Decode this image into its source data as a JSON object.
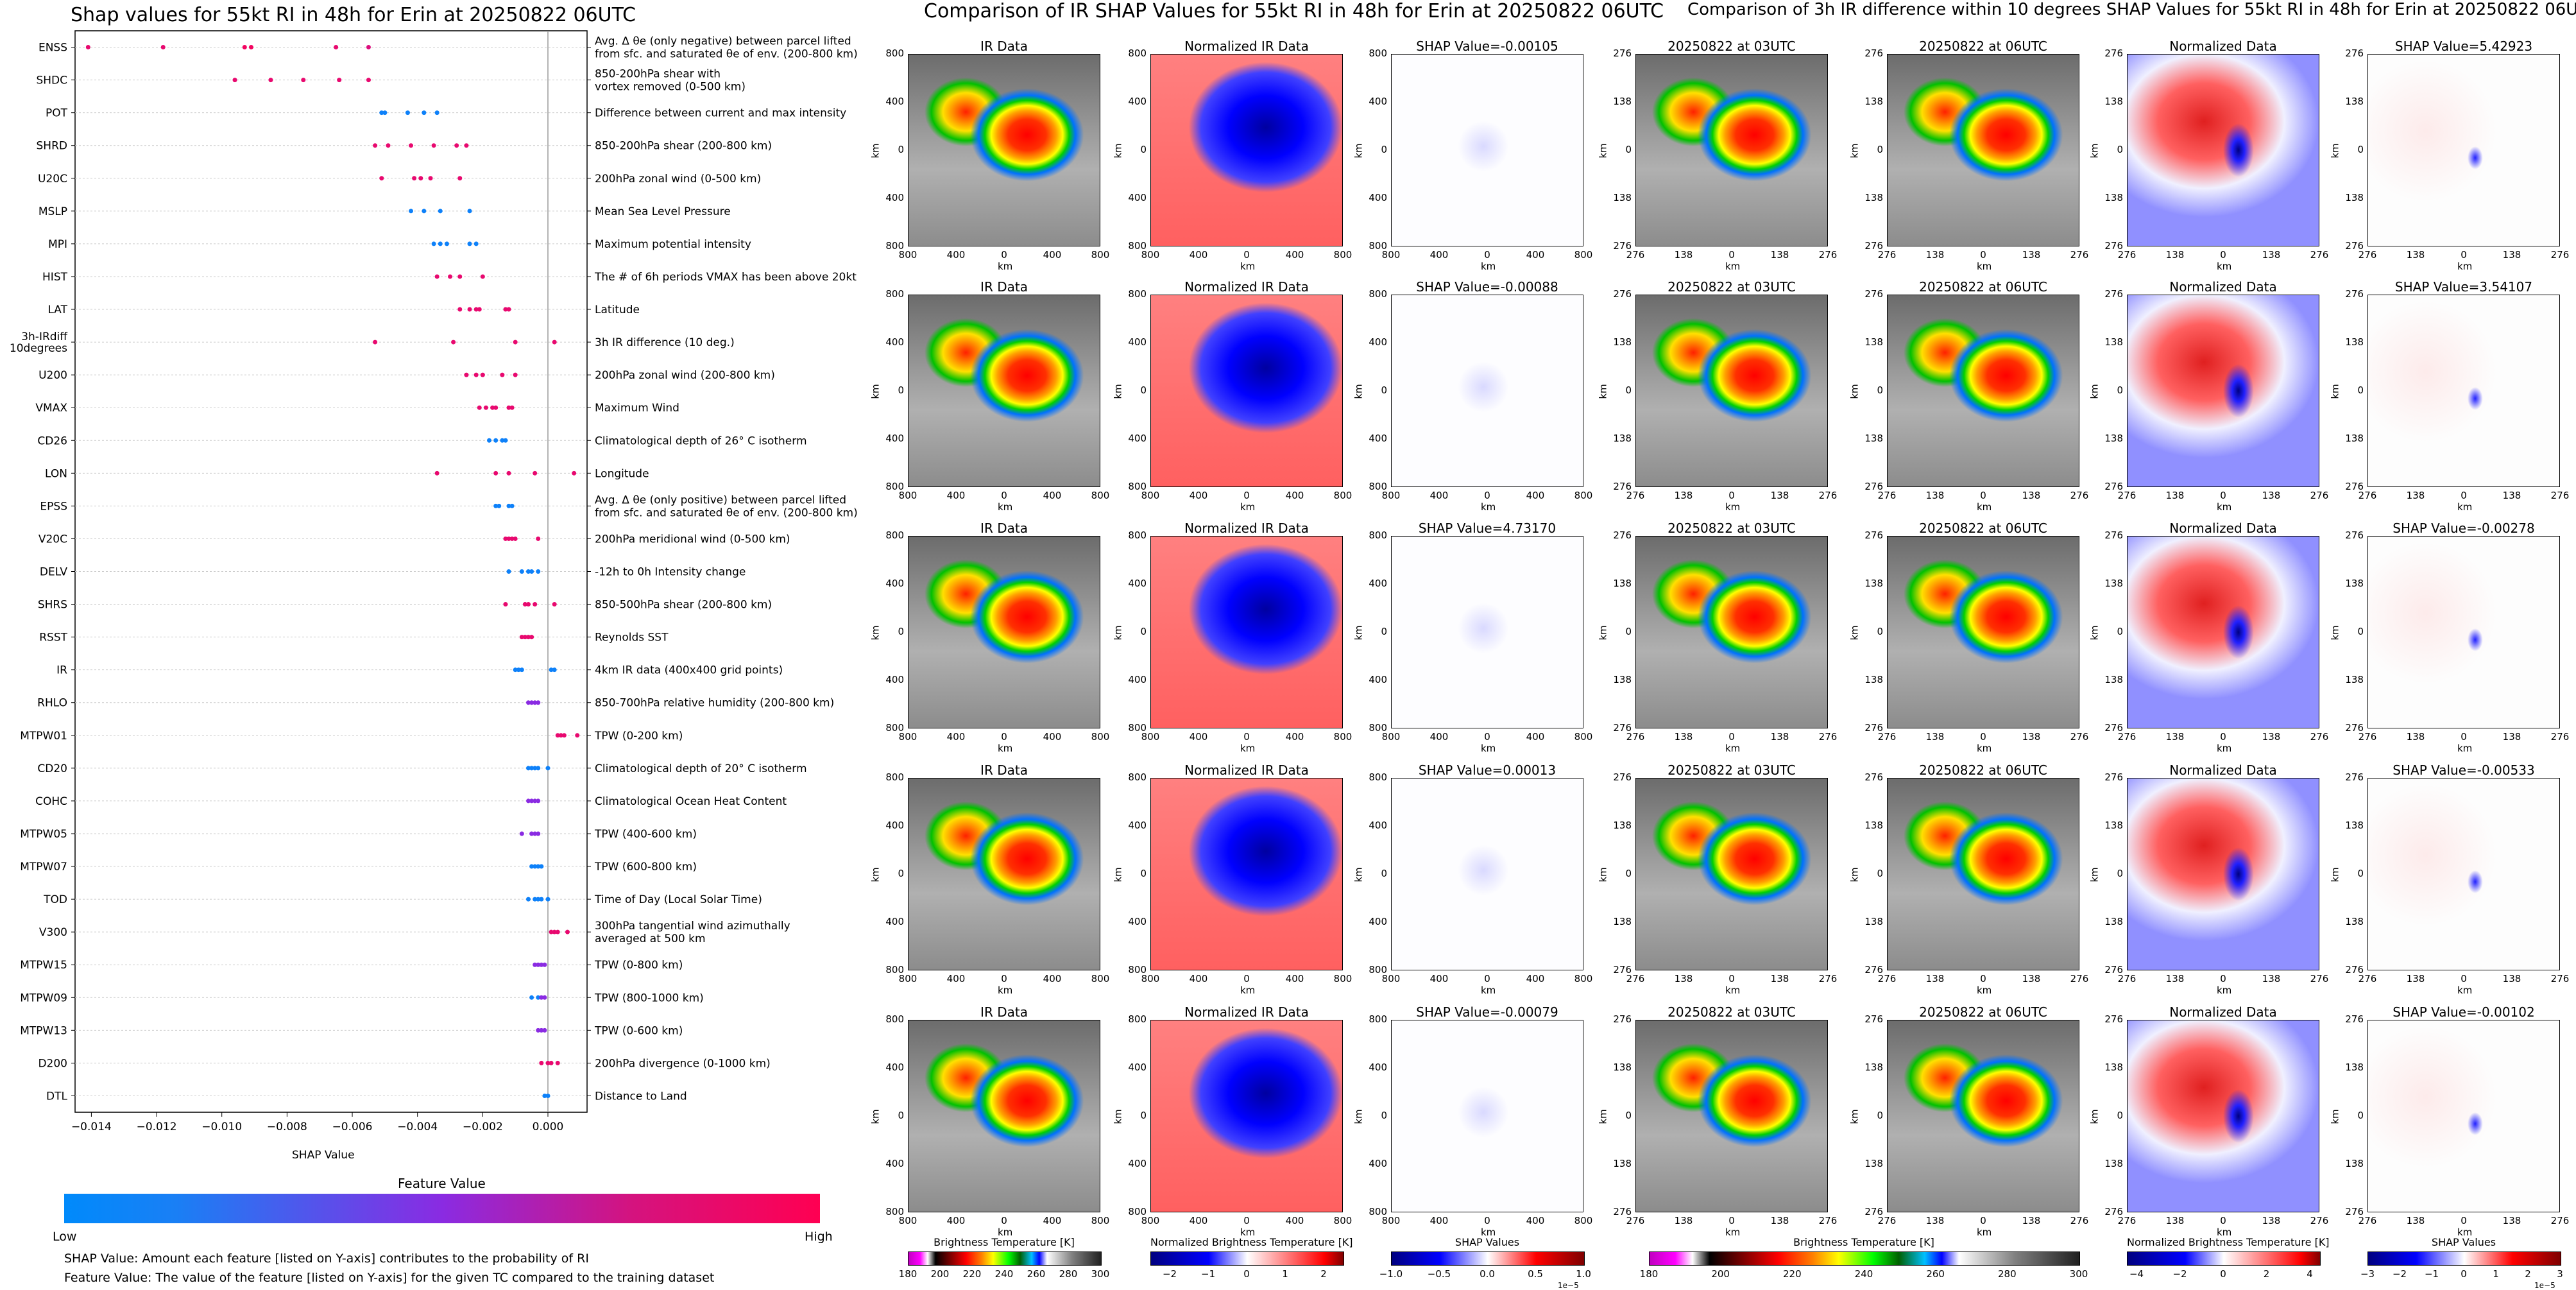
{
  "titles": {
    "left": "Shap values for 55kt RI in 48h for Erin at 20250822 06UTC",
    "middle": "Comparison of IR SHAP Values for 55kt RI in 48h for Erin at 20250822 06UTC",
    "right": "Comparison of 3h IR difference within 10 degrees SHAP Values for 55kt RI in 48h for Erin at 20250822 06UTC"
  },
  "summary": {
    "xlabel": "SHAP Value",
    "colorbar_title": "Feature Value",
    "colorbar_low": "Low",
    "colorbar_high": "High",
    "note1": "SHAP Value: Amount each feature [listed on Y-axis] contributes to the probability of RI",
    "note2": "Feature Value: The value of the feature [listed on Y-axis] for the given TC compared to the training dataset"
  },
  "ir_titles": [
    "IR Data",
    "Normalized IR Data",
    "SHAP Value=-0.00105",
    "SHAP Value=-0.00088",
    "SHAP Value=4.73170",
    "SHAP Value=0.00013",
    "SHAP Value=-0.00079"
  ],
  "diff_titles": [
    "20250822 at 03UTC",
    "20250822 at 06UTC",
    "Normalized Data",
    "SHAP Value=5.42923",
    "SHAP Value=3.54107",
    "SHAP Value=-0.00278",
    "SHAP Value=-0.00533",
    "SHAP Value=-0.00102"
  ],
  "km_label": "km",
  "colorbars": {
    "bt": {
      "label": "Brightness Temperature [K]",
      "ticks": [
        "180",
        "200",
        "220",
        "240",
        "260",
        "280",
        "300"
      ]
    },
    "nbt": {
      "label": "Normalized Brightness Temperature [K]",
      "ticks": [
        "−2",
        "−1",
        "0",
        "1",
        "2"
      ],
      "ticks_right": [
        "−4",
        "−2",
        "0",
        "2",
        "4"
      ]
    },
    "shap": {
      "label": "SHAP Values",
      "ticks": [
        "−1.0",
        "−0.5",
        "0.0",
        "0.5",
        "1.0"
      ],
      "offset": "1e−5",
      "ticks_right": [
        "−3",
        "−2",
        "−1",
        "0",
        "1",
        "2",
        "3"
      ],
      "offset_right": "1e−5"
    }
  },
  "colors": {
    "low": "#008afb",
    "high": "#ff0052",
    "mid": "#8a2be2"
  },
  "chart_data": {
    "type": "scatter",
    "title": "Shap values for 55kt RI in 48h for Erin at 20250822 06UTC",
    "xlabel": "SHAP Value",
    "xlim": [
      -0.0145,
      0.0012
    ],
    "xticks": [
      "−0.014",
      "−0.012",
      "−0.010",
      "−0.008",
      "−0.006",
      "−0.004",
      "−0.002",
      "0.000"
    ],
    "xtick_values": [
      -0.014,
      -0.012,
      -0.01,
      -0.008,
      -0.006,
      -0.004,
      -0.002,
      0.0
    ],
    "features": [
      {
        "name": "ENSS",
        "desc": "Avg. Δ θe (only negative) between parcel lifted|from sfc. and saturated θe of env. (200-800 km)",
        "points": [
          [
            -0.0141,
            0.9
          ],
          [
            -0.0118,
            0.9
          ],
          [
            -0.0093,
            0.95
          ],
          [
            -0.0091,
            0.95
          ],
          [
            -0.0065,
            0.9
          ],
          [
            -0.0055,
            0.85
          ]
        ]
      },
      {
        "name": "SHDC",
        "desc": "850-200hPa shear with|vortex removed (0-500 km)",
        "points": [
          [
            -0.0096,
            0.9
          ],
          [
            -0.0085,
            0.9
          ],
          [
            -0.0075,
            0.9
          ],
          [
            -0.0064,
            0.9
          ],
          [
            -0.0055,
            0.9
          ]
        ]
      },
      {
        "name": "POT",
        "desc": "Difference between current and max intensity",
        "points": [
          [
            -0.0051,
            0.05
          ],
          [
            -0.005,
            0.05
          ],
          [
            -0.0043,
            0.05
          ],
          [
            -0.0038,
            0.05
          ],
          [
            -0.0034,
            0.05
          ]
        ]
      },
      {
        "name": "SHRD",
        "desc": "850-200hPa shear (200-800 km)",
        "points": [
          [
            -0.0053,
            0.9
          ],
          [
            -0.0049,
            0.9
          ],
          [
            -0.0042,
            0.9
          ],
          [
            -0.0035,
            0.9
          ],
          [
            -0.0028,
            0.9
          ],
          [
            -0.0025,
            0.9
          ]
        ]
      },
      {
        "name": "U20C",
        "desc": "200hPa zonal wind (0-500 km)",
        "points": [
          [
            -0.0051,
            0.9
          ],
          [
            -0.0041,
            0.9
          ],
          [
            -0.0039,
            0.9
          ],
          [
            -0.0036,
            0.9
          ],
          [
            -0.0027,
            0.9
          ]
        ]
      },
      {
        "name": "MSLP",
        "desc": "Mean Sea Level Pressure",
        "points": [
          [
            -0.0042,
            0.05
          ],
          [
            -0.0038,
            0.05
          ],
          [
            -0.0033,
            0.05
          ],
          [
            -0.0024,
            0.05
          ]
        ]
      },
      {
        "name": "MPI",
        "desc": "Maximum potential intensity",
        "points": [
          [
            -0.0035,
            0.05
          ],
          [
            -0.0033,
            0.05
          ],
          [
            -0.0031,
            0.05
          ],
          [
            -0.0024,
            0.05
          ],
          [
            -0.0022,
            0.05
          ]
        ]
      },
      {
        "name": "HIST",
        "desc": "The # of 6h periods VMAX has been above 20kt",
        "points": [
          [
            -0.0034,
            0.9
          ],
          [
            -0.003,
            0.9
          ],
          [
            -0.0027,
            0.9
          ],
          [
            -0.002,
            0.9
          ]
        ]
      },
      {
        "name": "LAT",
        "desc": "Latitude",
        "points": [
          [
            -0.0027,
            0.9
          ],
          [
            -0.0024,
            0.9
          ],
          [
            -0.0022,
            0.9
          ],
          [
            -0.0021,
            0.9
          ],
          [
            -0.0013,
            0.9
          ],
          [
            -0.0012,
            0.9
          ]
        ]
      },
      {
        "name": "3h-IRdiff|10degrees",
        "desc": "3h IR difference (10 deg.)",
        "points": [
          [
            -0.0053,
            0.9
          ],
          [
            -0.0029,
            0.9
          ],
          [
            -0.001,
            0.9
          ],
          [
            0.0002,
            0.9
          ]
        ]
      },
      {
        "name": "U200",
        "desc": "200hPa zonal wind (200-800 km)",
        "points": [
          [
            -0.0025,
            0.9
          ],
          [
            -0.0022,
            0.9
          ],
          [
            -0.002,
            0.9
          ],
          [
            -0.0014,
            0.9
          ],
          [
            -0.001,
            0.9
          ]
        ]
      },
      {
        "name": "VMAX",
        "desc": "Maximum Wind",
        "points": [
          [
            -0.0021,
            0.9
          ],
          [
            -0.0019,
            0.9
          ],
          [
            -0.0017,
            0.9
          ],
          [
            -0.0016,
            0.9
          ],
          [
            -0.0012,
            0.9
          ],
          [
            -0.0011,
            0.9
          ]
        ]
      },
      {
        "name": "CD26",
        "desc": "Climatological depth of 26° C isotherm",
        "points": [
          [
            -0.0018,
            0.05
          ],
          [
            -0.0016,
            0.05
          ],
          [
            -0.0014,
            0.05
          ],
          [
            -0.0013,
            0.05
          ]
        ]
      },
      {
        "name": "LON",
        "desc": "Longitude",
        "points": [
          [
            -0.0034,
            0.9
          ],
          [
            -0.0016,
            0.9
          ],
          [
            -0.0012,
            0.9
          ],
          [
            -0.0004,
            0.9
          ],
          [
            0.0008,
            0.9
          ]
        ]
      },
      {
        "name": "EPSS",
        "desc": "Avg. Δ θe (only positive) between parcel lifted|from sfc. and saturated θe of env. (200-800 km)",
        "points": [
          [
            -0.0016,
            0.05
          ],
          [
            -0.0015,
            0.05
          ],
          [
            -0.0012,
            0.05
          ],
          [
            -0.0011,
            0.05
          ]
        ]
      },
      {
        "name": "V20C",
        "desc": "200hPa meridional wind (0-500 km)",
        "points": [
          [
            -0.0013,
            0.9
          ],
          [
            -0.0012,
            0.9
          ],
          [
            -0.0011,
            0.9
          ],
          [
            -0.001,
            0.9
          ],
          [
            -0.0003,
            0.9
          ]
        ]
      },
      {
        "name": "DELV",
        "desc": "-12h to 0h Intensity change",
        "points": [
          [
            -0.0012,
            0.05
          ],
          [
            -0.0008,
            0.05
          ],
          [
            -0.0006,
            0.05
          ],
          [
            -0.0005,
            0.05
          ],
          [
            -0.0003,
            0.05
          ]
        ]
      },
      {
        "name": "SHRS",
        "desc": "850-500hPa shear (200-800 km)",
        "points": [
          [
            -0.0013,
            0.9
          ],
          [
            -0.0007,
            0.9
          ],
          [
            -0.0006,
            0.9
          ],
          [
            -0.0004,
            0.9
          ],
          [
            0.0002,
            0.9
          ]
        ]
      },
      {
        "name": "RSST",
        "desc": "Reynolds SST",
        "points": [
          [
            -0.0008,
            0.9
          ],
          [
            -0.0007,
            0.9
          ],
          [
            -0.0006,
            0.9
          ],
          [
            -0.0005,
            0.9
          ]
        ]
      },
      {
        "name": "IR",
        "desc": "4km IR data (400x400 grid points)",
        "points": [
          [
            -0.001,
            0.05
          ],
          [
            -0.0009,
            0.05
          ],
          [
            -0.0008,
            0.05
          ],
          [
            0.0001,
            0.05
          ],
          [
            0.0002,
            0.05
          ]
        ]
      },
      {
        "name": "RHLO",
        "desc": "850-700hPa relative humidity (200-800 km)",
        "points": [
          [
            -0.0006,
            0.5
          ],
          [
            -0.0005,
            0.5
          ],
          [
            -0.0004,
            0.5
          ],
          [
            -0.0003,
            0.5
          ]
        ]
      },
      {
        "name": "MTPW01",
        "desc": "TPW (0-200 km)",
        "points": [
          [
            0.0003,
            0.9
          ],
          [
            0.0004,
            0.9
          ],
          [
            0.0005,
            0.9
          ],
          [
            0.0009,
            0.9
          ]
        ]
      },
      {
        "name": "CD20",
        "desc": "Climatological depth of 20° C isotherm",
        "points": [
          [
            -0.0006,
            0.05
          ],
          [
            -0.0005,
            0.05
          ],
          [
            -0.0004,
            0.05
          ],
          [
            -0.0003,
            0.05
          ],
          [
            0.0,
            0.05
          ]
        ]
      },
      {
        "name": "COHC",
        "desc": "Climatological Ocean Heat Content",
        "points": [
          [
            -0.0006,
            0.5
          ],
          [
            -0.0005,
            0.5
          ],
          [
            -0.0004,
            0.5
          ],
          [
            -0.0003,
            0.5
          ]
        ]
      },
      {
        "name": "MTPW05",
        "desc": "TPW (400-600 km)",
        "points": [
          [
            -0.0008,
            0.5
          ],
          [
            -0.0005,
            0.5
          ],
          [
            -0.0004,
            0.5
          ],
          [
            -0.0003,
            0.5
          ]
        ]
      },
      {
        "name": "MTPW07",
        "desc": "TPW (600-800 km)",
        "points": [
          [
            -0.0005,
            0.05
          ],
          [
            -0.0004,
            0.05
          ],
          [
            -0.0003,
            0.05
          ],
          [
            -0.0002,
            0.05
          ]
        ]
      },
      {
        "name": "TOD",
        "desc": "Time of Day (Local Solar Time)",
        "points": [
          [
            -0.0006,
            0.05
          ],
          [
            -0.0004,
            0.05
          ],
          [
            -0.0003,
            0.05
          ],
          [
            -0.0002,
            0.05
          ],
          [
            0.0,
            0.05
          ]
        ]
      },
      {
        "name": "V300",
        "desc": "300hPa tangential wind azimuthally|averaged at 500 km",
        "points": [
          [
            0.0001,
            0.9
          ],
          [
            0.0002,
            0.9
          ],
          [
            0.0003,
            0.9
          ],
          [
            0.0006,
            0.9
          ]
        ]
      },
      {
        "name": "MTPW15",
        "desc": "TPW (0-800 km)",
        "points": [
          [
            -0.0004,
            0.5
          ],
          [
            -0.0003,
            0.5
          ],
          [
            -0.0002,
            0.5
          ],
          [
            -0.0001,
            0.5
          ]
        ]
      },
      {
        "name": "MTPW09",
        "desc": "TPW (800-1000 km)",
        "points": [
          [
            -0.0005,
            0.05
          ],
          [
            -0.0003,
            0.05
          ],
          [
            -0.0002,
            0.5
          ],
          [
            -0.0001,
            0.5
          ]
        ]
      },
      {
        "name": "MTPW13",
        "desc": "TPW (0-600 km)",
        "points": [
          [
            -0.0003,
            0.5
          ],
          [
            -0.0002,
            0.5
          ],
          [
            -0.0001,
            0.5
          ]
        ]
      },
      {
        "name": "D200",
        "desc": "200hPa divergence (0-1000 km)",
        "points": [
          [
            -0.0002,
            0.9
          ],
          [
            0.0,
            0.9
          ],
          [
            0.0001,
            0.9
          ],
          [
            0.0003,
            0.9
          ]
        ]
      },
      {
        "name": "DTL",
        "desc": "Distance to Land",
        "points": [
          [
            -0.0001,
            0.05
          ],
          [
            0.0,
            0.05
          ]
        ]
      }
    ]
  }
}
